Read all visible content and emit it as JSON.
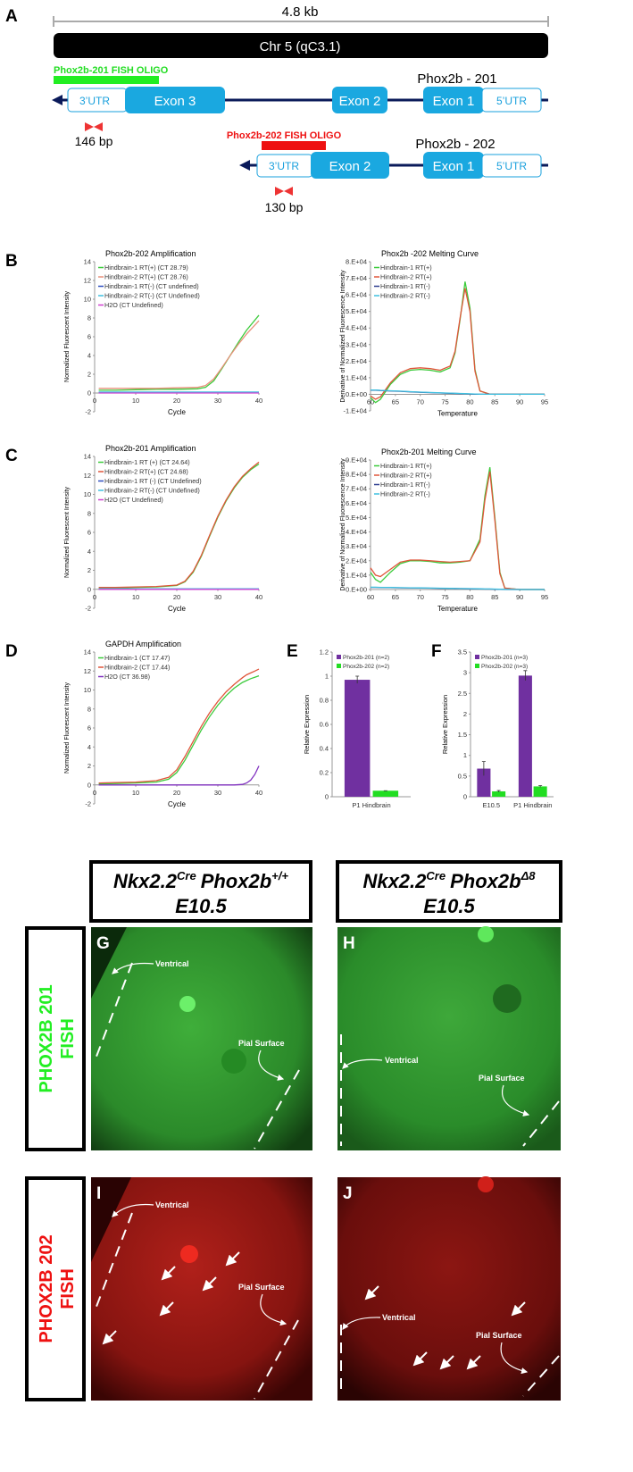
{
  "panel_labels": [
    "A",
    "B",
    "C",
    "D",
    "E",
    "F",
    "G",
    "H",
    "I",
    "J"
  ],
  "gene_map": {
    "scale_label": "4.8 kb",
    "chromosome": "Chr 5 (qC3.1)",
    "transcripts": [
      {
        "name": "Phox2b - 201",
        "oligo": "Phox2b-201 FISH OLIGO",
        "utr3": "3’UTR",
        "exons": [
          "Exon 3",
          "Exon 2",
          "Exon 1"
        ],
        "utr5": "5’UTR",
        "amplicon": "146 bp"
      },
      {
        "name": "Phox2b - 202",
        "oligo": "Phox2b-202 FISH OLIGO",
        "utr3": "3’UTR",
        "exons": [
          "Exon 2",
          "Exon 1"
        ],
        "utr5": "5’UTR",
        "amplicon": "130 bp"
      }
    ]
  },
  "chart_data": [
    {
      "type": "line",
      "title": "Phox2b-202 Amplification",
      "x_label": "Cycle",
      "y_label": "Normalized Fluorescent Intensity",
      "xlim": [
        0,
        40
      ],
      "xticks": [
        0,
        10,
        20,
        30,
        40
      ],
      "ylim": [
        -2,
        14
      ],
      "yticks": [
        -2,
        0,
        2,
        4,
        6,
        8,
        10,
        12,
        14
      ],
      "x": [
        1,
        5,
        10,
        15,
        20,
        25,
        27,
        29,
        31,
        33,
        35,
        37,
        40
      ],
      "series": [
        {
          "name": "Hindbrain-1 RT(+) (CT 28.79)",
          "color": "#3ccb3c",
          "values": [
            0.3,
            0.3,
            0.35,
            0.4,
            0.4,
            0.45,
            0.6,
            1.3,
            2.6,
            4.0,
            5.4,
            6.7,
            8.3
          ]
        },
        {
          "name": "Hindbrain-2 RT(+) (CT 28.76)",
          "color": "#e8907a",
          "values": [
            0.5,
            0.5,
            0.5,
            0.5,
            0.55,
            0.6,
            0.8,
            1.5,
            2.7,
            4.0,
            5.2,
            6.3,
            7.7
          ]
        },
        {
          "name": "Hindbrain-1 RT(-) (CT undefined)",
          "color": "#2f4fc0",
          "values": [
            0.05,
            0.05,
            0.05,
            0.05,
            0.05,
            0.05,
            0.05,
            0.05,
            0.05,
            0.05,
            0.05,
            0.05,
            0.05
          ]
        },
        {
          "name": "Hindbrain-2 RT(-) (CT Undefined)",
          "color": "#3fc0e0",
          "values": [
            0.1,
            0.1,
            0.1,
            0.1,
            0.1,
            0.1,
            0.1,
            0.1,
            0.1,
            0.1,
            0.1,
            0.1,
            0.1
          ]
        },
        {
          "name": "H2O (CT Undefined)",
          "color": "#d040d0",
          "values": [
            0,
            0,
            0,
            0,
            0,
            0,
            0,
            0,
            0,
            0,
            0,
            0,
            0
          ]
        }
      ]
    },
    {
      "type": "line",
      "title": "Phox2b -202 Melting Curve",
      "x_label": "Temperature",
      "y_label": "Derivative of Normalized Fluorescence Intensity",
      "xlim": [
        60,
        95
      ],
      "xticks": [
        60,
        65,
        70,
        75,
        80,
        85,
        90,
        95
      ],
      "ylim": [
        -10000,
        80000
      ],
      "yticks": [
        {
          "value": -10000,
          "label": "-1.E+04"
        },
        {
          "value": 0,
          "label": "0.E+00"
        },
        {
          "value": 10000,
          "label": "1.E+04"
        },
        {
          "value": 20000,
          "label": "2.E+04"
        },
        {
          "value": 30000,
          "label": "3.E+04"
        },
        {
          "value": 40000,
          "label": "4.E+04"
        },
        {
          "value": 50000,
          "label": "5.E+04"
        },
        {
          "value": 60000,
          "label": "6.E+04"
        },
        {
          "value": 70000,
          "label": "7.E+04"
        },
        {
          "value": 80000,
          "label": "8.E+04"
        }
      ],
      "x": [
        60,
        61,
        62,
        64,
        66,
        68,
        70,
        72,
        74,
        76,
        77,
        78,
        79,
        80,
        81,
        82,
        84,
        90,
        95
      ],
      "series": [
        {
          "name": "Hindbrain-1 RT(+)",
          "color": "#3ccb3c",
          "values": [
            -2000,
            -5000,
            -3000,
            6000,
            12000,
            14500,
            15000,
            14500,
            13500,
            16000,
            25000,
            45000,
            68000,
            52000,
            15000,
            2000,
            0,
            0,
            0
          ]
        },
        {
          "name": "Hindbrain-2 RT(+)",
          "color": "#e0553a",
          "values": [
            -1000,
            -3000,
            -1500,
            7000,
            13000,
            15500,
            16000,
            15500,
            14500,
            17000,
            26000,
            46000,
            64000,
            50000,
            14000,
            2000,
            0,
            0,
            0
          ]
        },
        {
          "name": "Hindbrain-1 RT(-)",
          "color": "#2f3f90",
          "values": [
            2500,
            2500,
            2300,
            2000,
            1800,
            1500,
            1200,
            1000,
            800,
            600,
            500,
            400,
            300,
            200,
            100,
            0,
            0,
            0,
            0
          ]
        },
        {
          "name": "Hindbrain-2 RT(-)",
          "color": "#3fc0e0",
          "values": [
            2600,
            2600,
            2400,
            2100,
            1900,
            1600,
            1300,
            1100,
            900,
            700,
            600,
            500,
            400,
            300,
            200,
            100,
            0,
            0,
            0
          ]
        }
      ]
    },
    {
      "type": "line",
      "title": "Phox2b-201 Amplification",
      "x_label": "Cycle",
      "y_label": "Normalized Fluorescent Intensity",
      "xlim": [
        0,
        40
      ],
      "xticks": [
        0,
        10,
        20,
        30,
        40
      ],
      "ylim": [
        -2,
        14
      ],
      "yticks": [
        -2,
        0,
        2,
        4,
        6,
        8,
        10,
        12,
        14
      ],
      "x": [
        1,
        5,
        10,
        15,
        20,
        22,
        24,
        26,
        28,
        30,
        32,
        34,
        36,
        38,
        40
      ],
      "series": [
        {
          "name": "Hindbrain-1 RT (+) (CT 24.64)",
          "color": "#3ccb3c",
          "values": [
            0.1,
            0.15,
            0.2,
            0.25,
            0.4,
            0.8,
            1.8,
            3.5,
            5.6,
            7.6,
            9.3,
            10.7,
            11.8,
            12.6,
            13.2
          ]
        },
        {
          "name": "Hindbrain-2 RT(+) (CT 24.68)",
          "color": "#e0553a",
          "values": [
            0.2,
            0.2,
            0.25,
            0.3,
            0.45,
            0.85,
            1.9,
            3.6,
            5.7,
            7.7,
            9.4,
            10.8,
            11.9,
            12.7,
            13.4
          ]
        },
        {
          "name": "Hindbrain-1 RT (-) (CT Undefined)",
          "color": "#2f4fc0",
          "values": [
            0,
            0,
            0,
            0,
            0,
            0,
            0,
            0,
            0,
            0,
            0,
            0,
            0,
            0,
            0
          ]
        },
        {
          "name": "Hindbrain-2 RT(-) (CT Undefined)",
          "color": "#3fc0e0",
          "values": [
            0.05,
            0.05,
            0.05,
            0.05,
            0.05,
            0.05,
            0.05,
            0.05,
            0.05,
            0.05,
            0.05,
            0.05,
            0.05,
            0.05,
            0.05
          ]
        },
        {
          "name": "H2O (CT Undefined)",
          "color": "#d040d0",
          "values": [
            0,
            0,
            0,
            0,
            0,
            0,
            0,
            0,
            0,
            0,
            0,
            0,
            0,
            0,
            0
          ]
        }
      ]
    },
    {
      "type": "line",
      "title": "Phox2b-201  Melting Curve",
      "x_label": "Temperature",
      "y_label": "Derivative of Normalized Fluorescence Intensity",
      "xlim": [
        60,
        95
      ],
      "xticks": [
        60,
        65,
        70,
        75,
        80,
        85,
        90,
        95
      ],
      "ylim": [
        0,
        90000
      ],
      "yticks": [
        {
          "value": 0,
          "label": "0.E+00"
        },
        {
          "value": 10000,
          "label": "1.E+04"
        },
        {
          "value": 20000,
          "label": "2.E+04"
        },
        {
          "value": 30000,
          "label": "3.E+04"
        },
        {
          "value": 40000,
          "label": "4.E+04"
        },
        {
          "value": 50000,
          "label": "5.E+04"
        },
        {
          "value": 60000,
          "label": "6.E+04"
        },
        {
          "value": 70000,
          "label": "7.E+04"
        },
        {
          "value": 80000,
          "label": "8.E+04"
        },
        {
          "value": 90000,
          "label": "9.E+04"
        }
      ],
      "x": [
        60,
        61,
        62,
        64,
        66,
        68,
        70,
        72,
        74,
        76,
        78,
        80,
        82,
        83,
        84,
        85,
        86,
        87,
        90,
        95
      ],
      "series": [
        {
          "name": "Hindbrain-1 RT(+)",
          "color": "#3ccb3c",
          "values": [
            12000,
            7000,
            5000,
            12000,
            18000,
            20000,
            20000,
            19500,
            18500,
            18500,
            19000,
            20000,
            35000,
            65000,
            85000,
            50000,
            12000,
            1000,
            0,
            0
          ]
        },
        {
          "name": "Hindbrain-2 RT(+)",
          "color": "#e0553a",
          "values": [
            15000,
            10000,
            9000,
            14000,
            19000,
            20500,
            20500,
            20000,
            19500,
            19000,
            19500,
            20000,
            33000,
            62000,
            82000,
            48000,
            11000,
            1000,
            0,
            0
          ]
        },
        {
          "name": "Hindbrain-1 RT(-)",
          "color": "#2f3f90",
          "values": [
            1500,
            1500,
            1400,
            1300,
            1200,
            1100,
            1000,
            900,
            800,
            700,
            600,
            500,
            400,
            300,
            300,
            200,
            100,
            0,
            0,
            0
          ]
        },
        {
          "name": "Hindbrain-2 RT(-)",
          "color": "#3fc0e0",
          "values": [
            1600,
            1600,
            1500,
            1400,
            1300,
            1200,
            1100,
            1000,
            900,
            800,
            700,
            600,
            500,
            400,
            400,
            300,
            200,
            100,
            0,
            0
          ]
        }
      ]
    },
    {
      "type": "line",
      "title": "GAPDH Amplification",
      "x_label": "Cycle",
      "y_label": "Normalized Fluorescent Intensity",
      "xlim": [
        0,
        40
      ],
      "xticks": [
        0,
        10,
        20,
        30,
        40
      ],
      "ylim": [
        -2,
        14
      ],
      "yticks": [
        -2,
        0,
        2,
        4,
        6,
        8,
        10,
        12,
        14
      ],
      "x": [
        1,
        5,
        10,
        15,
        18,
        20,
        22,
        24,
        26,
        28,
        30,
        32,
        34,
        36,
        37,
        38,
        39,
        40
      ],
      "series": [
        {
          "name": "Hindbrain-1 (CT 17.47)",
          "color": "#3ccb3c",
          "values": [
            0.1,
            0.15,
            0.2,
            0.3,
            0.6,
            1.3,
            2.6,
            4.2,
            5.8,
            7.2,
            8.4,
            9.4,
            10.2,
            10.8,
            11.0,
            11.2,
            11.35,
            11.5
          ]
        },
        {
          "name": "Hindbrain-2 (CT 17.44)",
          "color": "#e0553a",
          "values": [
            0.2,
            0.25,
            0.3,
            0.45,
            0.8,
            1.6,
            3.0,
            4.6,
            6.2,
            7.6,
            8.8,
            9.8,
            10.6,
            11.3,
            11.6,
            11.8,
            12.0,
            12.2
          ]
        },
        {
          "name": "H2O (CT 36.98)",
          "color": "#8030c0",
          "values": [
            0,
            0,
            0,
            0,
            0,
            0,
            0,
            0,
            0,
            0,
            0,
            0,
            0,
            0.05,
            0.2,
            0.5,
            1.1,
            2.0
          ]
        }
      ]
    },
    {
      "type": "bar",
      "y_label": "Relative Expression",
      "ylim": [
        0,
        1.2
      ],
      "yticks": [
        0,
        0.2,
        0.4,
        0.6,
        0.8,
        1,
        1.2
      ],
      "categories": [
        "P1 Hindbrain"
      ],
      "series": [
        {
          "name": "Phox2b-201 (n=2)",
          "color": "#7030a0",
          "values": [
            0.97
          ],
          "errors": [
            0.03
          ]
        },
        {
          "name": "Phox2b-202 (n=2)",
          "color": "#22dd22",
          "values": [
            0.05
          ],
          "errors": [
            0
          ]
        }
      ]
    },
    {
      "type": "bar",
      "y_label": "Relative Expression",
      "ylim": [
        0,
        3.5
      ],
      "yticks": [
        0,
        0.5,
        1,
        1.5,
        2,
        2.5,
        3,
        3.5
      ],
      "categories": [
        "E10.5",
        "P1 Hindbrain"
      ],
      "series": [
        {
          "name": "Phox2b-201 (n=3)",
          "color": "#7030a0",
          "values": [
            0.68,
            2.93
          ],
          "errors": [
            0.17,
            0.12
          ]
        },
        {
          "name": "Phox2b-202 (n=3)",
          "color": "#22dd22",
          "values": [
            0.13,
            0.25
          ],
          "errors": [
            0.02,
            0.02
          ]
        }
      ]
    }
  ],
  "micrographs": {
    "columns": [
      {
        "driver": "Nkx2.2",
        "driver_sup": "Cre",
        "gene": "Phox2b",
        "gene_sup": "+/+",
        "stage": "E10.5"
      },
      {
        "driver": "Nkx2.2",
        "driver_sup": "Cre",
        "gene": "Phox2b",
        "gene_sup": "Δ8",
        "stage": "E10.5"
      }
    ],
    "rows": [
      [
        "PHOX2B 201",
        "FISH"
      ],
      [
        "PHOX2B 202",
        "FISH"
      ]
    ],
    "annotations": {
      "ventricle": "Ventrical",
      "pial": "Pial Surface"
    }
  }
}
